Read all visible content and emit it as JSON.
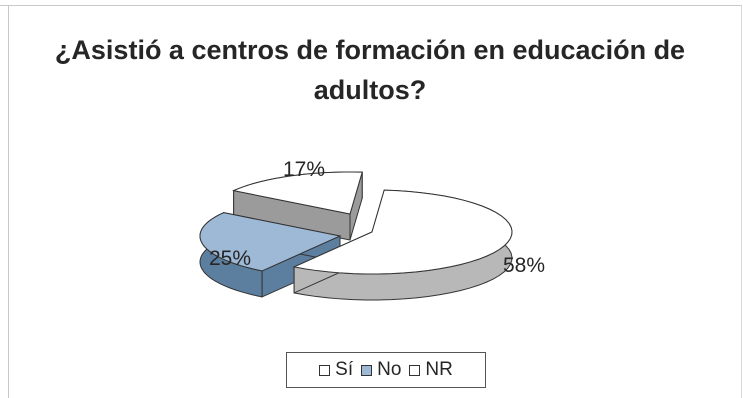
{
  "chart_data": {
    "type": "pie",
    "title": "¿Asistió a centros de formación en educación de adultos?",
    "categories": [
      "Sí",
      "No",
      "NR"
    ],
    "values": [
      58,
      25,
      17
    ],
    "value_labels": [
      "58%",
      "25%",
      "17%"
    ],
    "colors": [
      "#ffffff",
      "#9db9d6",
      "#ffffff"
    ],
    "exploded": true,
    "legend_position": "bottom"
  }
}
